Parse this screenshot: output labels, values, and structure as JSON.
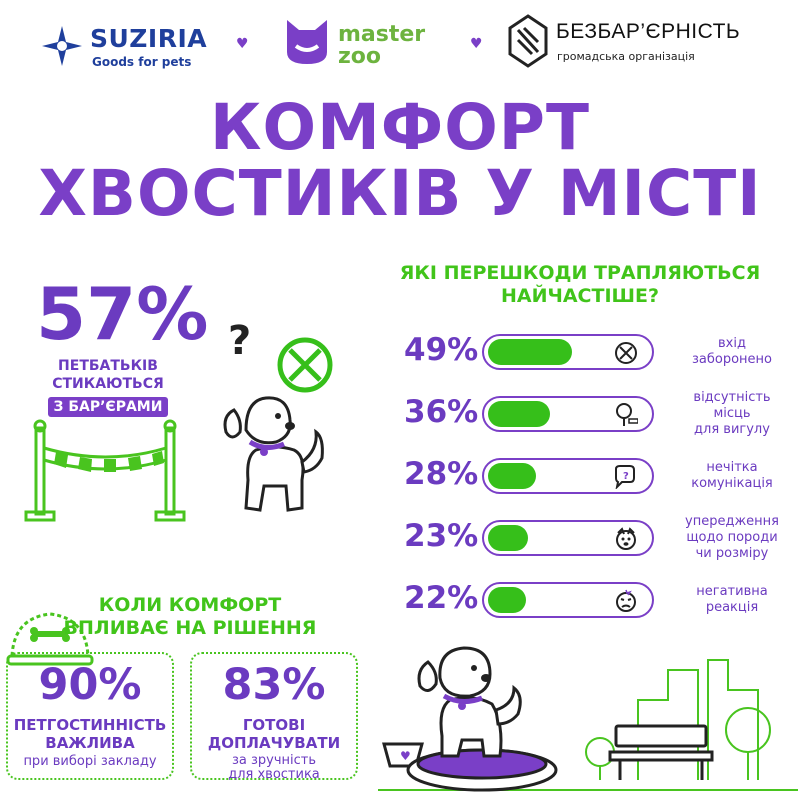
{
  "header": {
    "suziria": {
      "name": "SUZIRIA",
      "tagline": "Goods for pets"
    },
    "masterzoo": {
      "line1": "master",
      "line2": "zoo"
    },
    "bezbar": {
      "name": "БЕЗБАР’ЄРНІСТЬ",
      "subtitle": "громадська організація"
    }
  },
  "title": {
    "line1": "КОМФОРТ",
    "line2": "ХВОСТИКІВ У МІСТІ"
  },
  "left_stat": {
    "percent": "57%",
    "line1": "ПЕТБАТЬКІВ",
    "line2": "СТИКАЮТЬСЯ",
    "badge": "З БАР’ЄРАМИ"
  },
  "obstacles": {
    "title_line1": "ЯКІ ПЕРЕШКОДИ ТРАПЛЯЮТЬСЯ",
    "title_line2": "НАЙЧАСТІШЕ?",
    "items": [
      {
        "percent": "49%",
        "value": 49,
        "label": [
          "вхід",
          "заборонено"
        ],
        "icon": "prohibited-icon"
      },
      {
        "percent": "36%",
        "value": 36,
        "label": [
          "відсутність",
          "місць",
          "для вигулу"
        ],
        "icon": "tree-bench-icon"
      },
      {
        "percent": "28%",
        "value": 28,
        "label": [
          "нечітка",
          "комунікація"
        ],
        "icon": "speech-bubble-icon"
      },
      {
        "percent": "23%",
        "value": 23,
        "label": [
          "упередження",
          "щодо породи",
          "чи розміру"
        ],
        "icon": "dog-face-icon"
      },
      {
        "percent": "22%",
        "value": 22,
        "label": [
          "негативна",
          "реакція"
        ],
        "icon": "angry-face-icon"
      }
    ]
  },
  "comfort": {
    "title_line1": "КОЛИ КОМФОРТ",
    "title_line2": "ВПЛИВАЄ НА РІШЕННЯ",
    "cards": [
      {
        "percent": "90%",
        "bold": [
          "ПЕТГОСТИННІСТЬ",
          "ВАЖЛИВА"
        ],
        "small": [
          "при виборі закладу"
        ]
      },
      {
        "percent": "83%",
        "bold": [
          "ГОТОВІ",
          "ДОПЛАЧУВАТИ"
        ],
        "small": [
          "за зручність",
          "для хвостика"
        ]
      }
    ]
  },
  "colors": {
    "purple": "#7a3fc7",
    "green": "#41c41a",
    "bar_fill": "#36bf1a",
    "suziria_blue": "#1f3f9c"
  }
}
